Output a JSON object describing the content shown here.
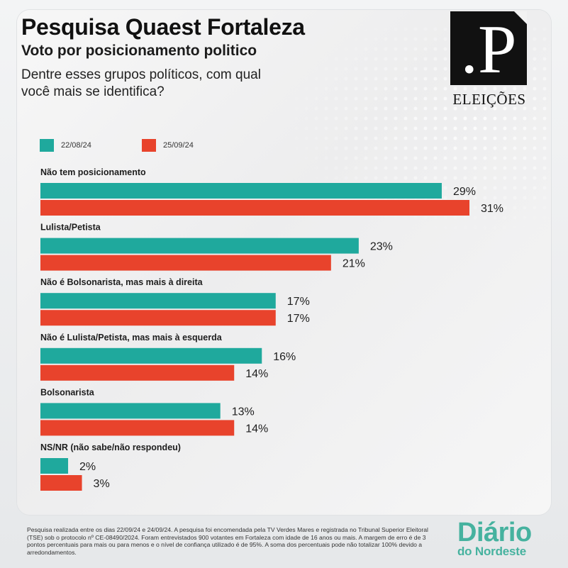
{
  "header": {
    "title": "Pesquisa Quaest Fortaleza",
    "subtitle": "Voto por posicionamento politico",
    "question": "Dentre esses grupos políticos, com qual você mais se identifica?"
  },
  "logo": {
    "letter": ".P",
    "label": "ELEIÇÕES"
  },
  "colors": {
    "series1": "#1fa99d",
    "series2": "#e8432c"
  },
  "chart_data": {
    "type": "bar",
    "orientation": "horizontal",
    "categories": [
      "Não tem posicionamento",
      "Lulista/Petista",
      "Não é Bolsonarista, mas mais à direita",
      "Não é Lulista/Petista, mas mais à esquerda",
      "Bolsonarista",
      "NS/NR (não sabe/não respondeu)"
    ],
    "series": [
      {
        "name": "22/08/24",
        "values": [
          29,
          23,
          17,
          16,
          13,
          2
        ]
      },
      {
        "name": "25/09/24",
        "values": [
          31,
          21,
          17,
          14,
          14,
          3
        ]
      }
    ],
    "value_suffix": "%",
    "title": "Pesquisa Quaest Fortaleza",
    "xlim": [
      0,
      31
    ],
    "legend": "top-left",
    "grid": false
  },
  "footnote": "Pesquisa realizada entre os dias 22/09/24 e 24/09/24. A pesquisa foi encomendada pela TV Verdes Mares e registrada no Tribunal Superior Eleitoral (TSE) sob o protocolo nº CE-08490/2024. Foram entrevistados 900 votantes em Fortaleza com idade de 16 anos ou mais. A margem de erro é de 3 pontos percentuais para mais ou para menos e o nível de confiança utilizado é de 95%. A soma dos percentuais pode não totalizar 100% devido a arredondamentos.",
  "brand": {
    "top": "Diário",
    "bottom": "do Nordeste"
  }
}
